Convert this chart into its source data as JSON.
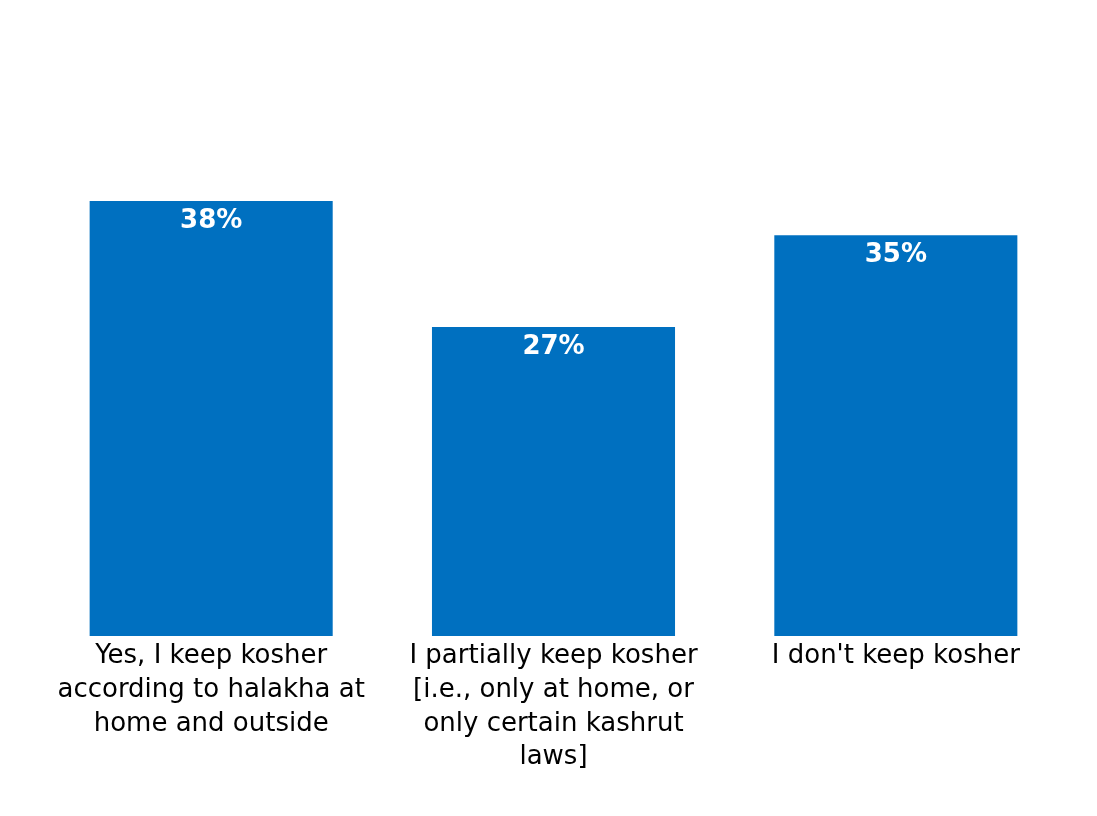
{
  "chart_data": {
    "type": "bar",
    "categories": [
      "Yes, I keep kosher according to halakha at home and outside",
      "I partially keep kosher [i.e., only at home, or only certain kashrut laws]",
      "I don't keep kosher"
    ],
    "values": [
      38,
      27,
      35
    ],
    "value_labels": [
      "38%",
      "27%",
      "35%"
    ],
    "color": "#0070c0",
    "legend": false
  }
}
